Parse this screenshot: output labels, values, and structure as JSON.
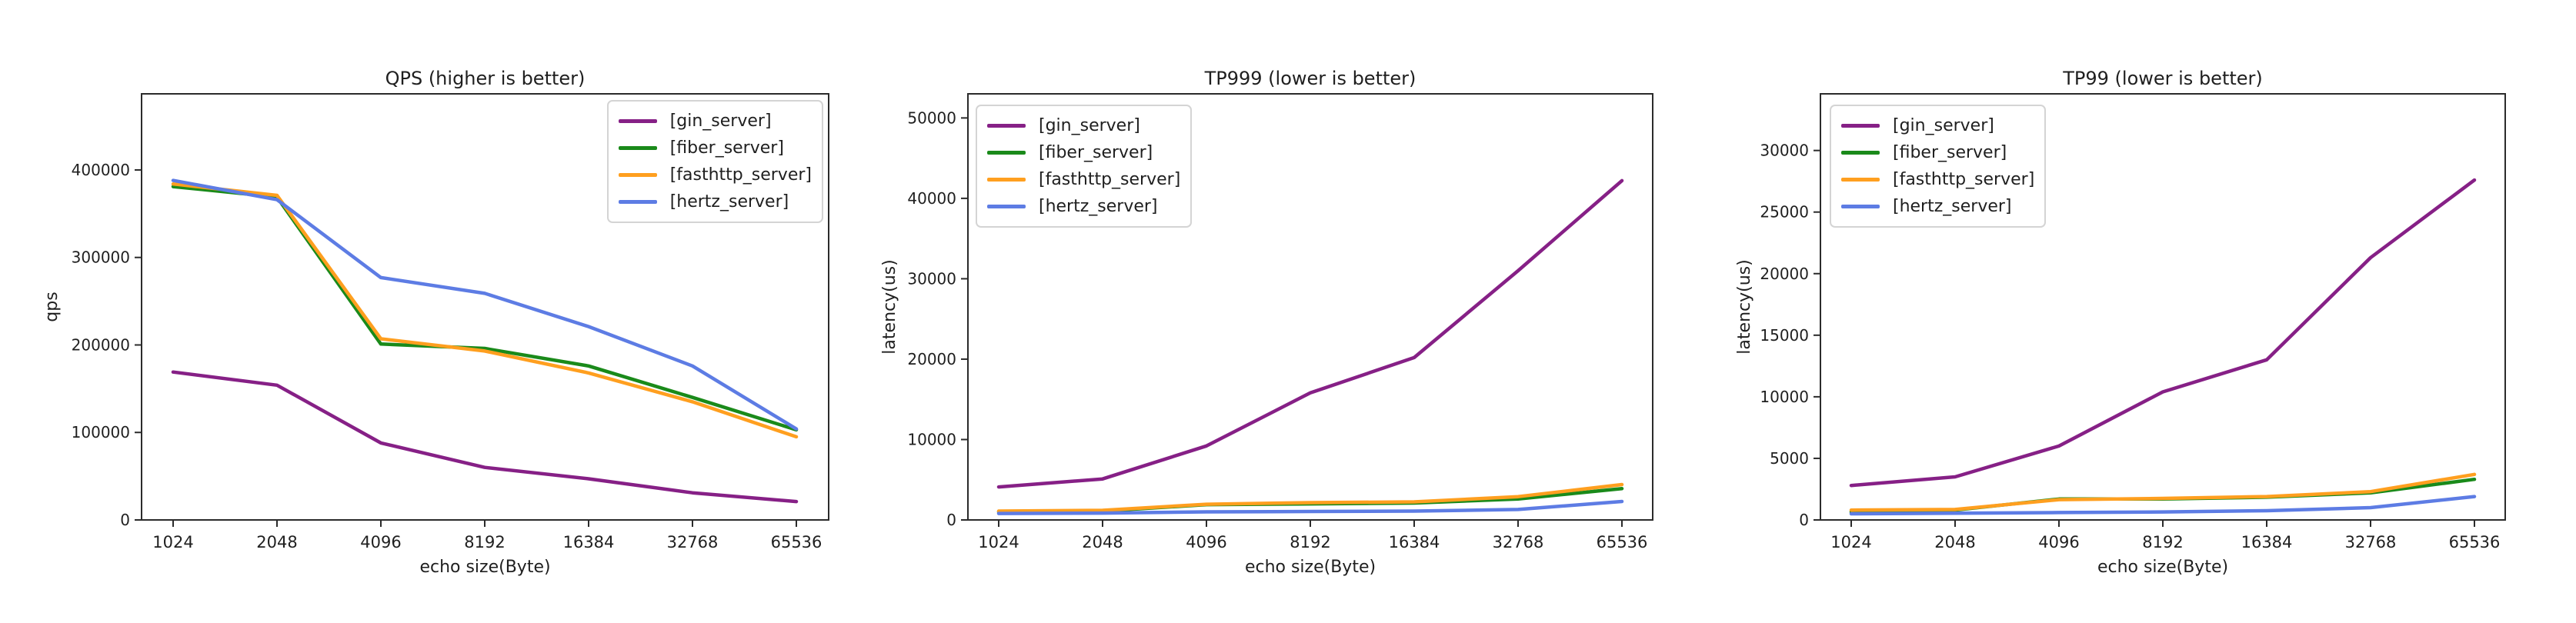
{
  "page": {
    "background_color": "#ffffff",
    "text_color": "#1f1f1f",
    "spine_color": "#2b2b2b"
  },
  "chart_data": [
    {
      "type": "line",
      "title": "QPS (higher is better)",
      "xlabel": "echo size(Byte)",
      "ylabel": "qps",
      "categories": [
        "1024",
        "2048",
        "4096",
        "8192",
        "16384",
        "32768",
        "65536"
      ],
      "x_scale": "log2-categorical",
      "grid": false,
      "ylim": [
        0,
        487000
      ],
      "yticks": [
        0,
        100000,
        200000,
        300000,
        400000
      ],
      "legend_position": "top-right",
      "series": [
        {
          "name": "[gin_server]",
          "color": "#862086",
          "values": [
            169000,
            154000,
            88000,
            60000,
            47000,
            31000,
            21000
          ]
        },
        {
          "name": "[fiber_server]",
          "color": "#1a8a1a",
          "values": [
            381000,
            369000,
            201000,
            196000,
            176000,
            140000,
            103000
          ]
        },
        {
          "name": "[fasthttp_server]",
          "color": "#ff9f1f",
          "values": [
            384000,
            371000,
            207000,
            193000,
            168000,
            135000,
            95000
          ]
        },
        {
          "name": "[hertz_server]",
          "color": "#5d7ce4",
          "values": [
            388000,
            366000,
            277000,
            259000,
            221000,
            176000,
            104000
          ]
        }
      ]
    },
    {
      "type": "line",
      "title": "TP999 (lower is better)",
      "xlabel": "echo size(Byte)",
      "ylabel": "latency(us)",
      "categories": [
        "1024",
        "2048",
        "4096",
        "8192",
        "16384",
        "32768",
        "65536"
      ],
      "x_scale": "log2-categorical",
      "grid": false,
      "ylim": [
        0,
        53000
      ],
      "yticks": [
        0,
        10000,
        20000,
        30000,
        40000,
        50000
      ],
      "legend_position": "top-left",
      "series": [
        {
          "name": "[gin_server]",
          "color": "#862086",
          "values": [
            4100,
            5100,
            9200,
            15800,
            20200,
            31000,
            42200
          ]
        },
        {
          "name": "[fiber_server]",
          "color": "#1a8a1a",
          "values": [
            1000,
            1100,
            1900,
            2000,
            2100,
            2600,
            3900
          ]
        },
        {
          "name": "[fasthttp_server]",
          "color": "#ff9f1f",
          "values": [
            1100,
            1200,
            1950,
            2150,
            2250,
            2900,
            4400
          ]
        },
        {
          "name": "[hertz_server]",
          "color": "#5d7ce4",
          "values": [
            800,
            850,
            1000,
            1050,
            1100,
            1300,
            2300
          ]
        }
      ]
    },
    {
      "type": "line",
      "title": "TP99 (lower is better)",
      "xlabel": "echo size(Byte)",
      "ylabel": "latency(us)",
      "categories": [
        "1024",
        "2048",
        "4096",
        "8192",
        "16384",
        "32768",
        "65536"
      ],
      "x_scale": "log2-categorical",
      "grid": false,
      "ylim": [
        0,
        34600
      ],
      "yticks": [
        0,
        5000,
        10000,
        15000,
        20000,
        25000,
        30000
      ],
      "legend_position": "top-left",
      "series": [
        {
          "name": "[gin_server]",
          "color": "#862086",
          "values": [
            2800,
            3500,
            6000,
            10400,
            13000,
            21300,
            27600
          ]
        },
        {
          "name": "[fiber_server]",
          "color": "#1a8a1a",
          "values": [
            650,
            800,
            1700,
            1700,
            1850,
            2200,
            3300
          ]
        },
        {
          "name": "[fasthttp_server]",
          "color": "#ff9f1f",
          "values": [
            800,
            850,
            1650,
            1750,
            1900,
            2300,
            3700
          ]
        },
        {
          "name": "[hertz_server]",
          "color": "#5d7ce4",
          "values": [
            500,
            550,
            600,
            650,
            750,
            1000,
            1900
          ]
        }
      ]
    }
  ]
}
